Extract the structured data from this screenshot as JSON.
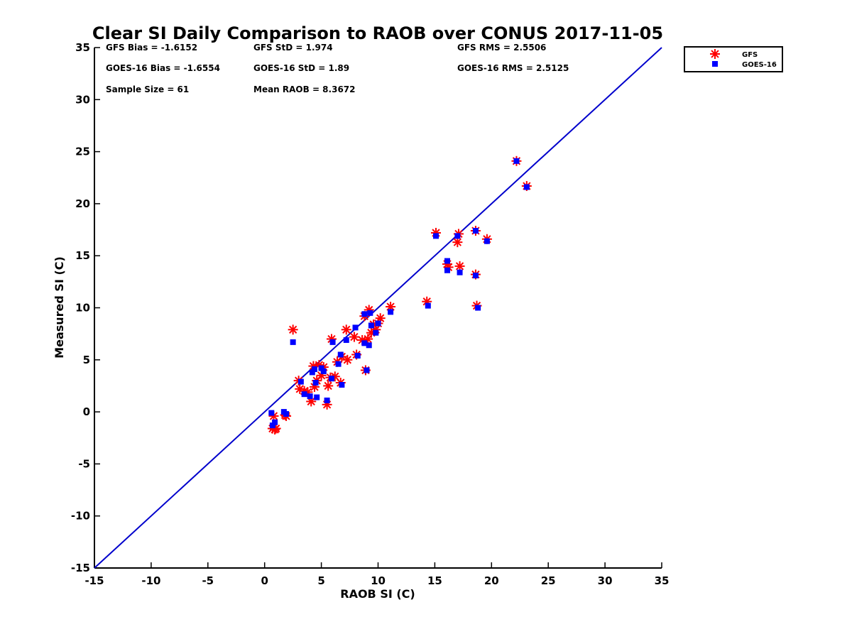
{
  "chart_data": {
    "type": "scatter",
    "title": "Clear SI Daily Comparison to RAOB over CONUS 2017-11-05",
    "xlabel": "RAOB SI (C)",
    "ylabel": "Measured SI (C)",
    "xlim": [
      -15,
      35
    ],
    "ylim": [
      -15,
      35
    ],
    "xticks": [
      "-15",
      "-10",
      "-5",
      "0",
      "5",
      "10",
      "15",
      "20",
      "25",
      "30",
      "35"
    ],
    "yticks": [
      "-15",
      "-10",
      "-5",
      "0",
      "5",
      "10",
      "15",
      "20",
      "25",
      "30",
      "35"
    ],
    "grid": false,
    "legend_position": "outside-top-right",
    "reference_line": {
      "from": [
        -15,
        -15
      ],
      "to": [
        35,
        35
      ],
      "color": "#0000cc"
    },
    "stats": [
      "GFS Bias = -1.6152",
      "GFS StD = 1.974",
      "GFS RMS = 2.5506",
      "GOES-16 Bias = -1.6554",
      "GOES-16 StD = 1.89",
      "GOES-16 RMS = 2.5125",
      "Sample Size = 61",
      "Mean RAOB = 8.3672"
    ],
    "series": [
      {
        "name": "GFS",
        "marker": "asterisk",
        "color": "#ff0000",
        "points": [
          [
            0.7,
            -1.6
          ],
          [
            0.9,
            -1.7
          ],
          [
            1.0,
            -1.6
          ],
          [
            0.8,
            -0.4
          ],
          [
            1.8,
            -0.3
          ],
          [
            1.9,
            -0.4
          ],
          [
            2.5,
            7.9
          ],
          [
            3.0,
            3.0
          ],
          [
            3.1,
            2.2
          ],
          [
            3.5,
            2.0
          ],
          [
            3.8,
            1.9
          ],
          [
            4.1,
            1.0
          ],
          [
            4.3,
            4.4
          ],
          [
            4.4,
            2.4
          ],
          [
            4.6,
            3.0
          ],
          [
            4.8,
            4.5
          ],
          [
            5.0,
            3.5
          ],
          [
            5.2,
            4.3
          ],
          [
            5.5,
            0.7
          ],
          [
            5.6,
            2.5
          ],
          [
            5.8,
            3.3
          ],
          [
            5.9,
            7.0
          ],
          [
            6.2,
            3.4
          ],
          [
            6.4,
            4.8
          ],
          [
            6.7,
            2.8
          ],
          [
            6.8,
            5.3
          ],
          [
            7.2,
            7.9
          ],
          [
            7.3,
            5.0
          ],
          [
            7.9,
            7.2
          ],
          [
            8.1,
            5.5
          ],
          [
            8.6,
            6.9
          ],
          [
            8.8,
            9.2
          ],
          [
            8.9,
            4.0
          ],
          [
            9.1,
            7.0
          ],
          [
            9.2,
            9.8
          ],
          [
            9.4,
            7.6
          ],
          [
            9.6,
            8.4
          ],
          [
            9.8,
            7.9
          ],
          [
            10.0,
            8.5
          ],
          [
            10.2,
            9.0
          ],
          [
            11.1,
            10.1
          ],
          [
            14.3,
            10.6
          ],
          [
            15.1,
            17.2
          ],
          [
            16.1,
            14.2
          ],
          [
            16.2,
            13.9
          ],
          [
            17.0,
            16.3
          ],
          [
            17.1,
            17.1
          ],
          [
            17.2,
            14.0
          ],
          [
            18.6,
            13.2
          ],
          [
            18.6,
            17.4
          ],
          [
            18.7,
            10.2
          ],
          [
            19.6,
            16.6
          ],
          [
            22.2,
            24.1
          ],
          [
            23.1,
            21.7
          ]
        ]
      },
      {
        "name": "GOES-16",
        "marker": "square",
        "color": "#0000ff",
        "points": [
          [
            0.6,
            -0.1
          ],
          [
            0.7,
            -1.3
          ],
          [
            0.9,
            -1.0
          ],
          [
            1.7,
            0.0
          ],
          [
            1.9,
            -0.2
          ],
          [
            2.5,
            6.7
          ],
          [
            3.2,
            2.9
          ],
          [
            3.5,
            1.7
          ],
          [
            4.0,
            1.5
          ],
          [
            4.2,
            3.8
          ],
          [
            4.4,
            4.1
          ],
          [
            4.5,
            2.8
          ],
          [
            4.6,
            1.4
          ],
          [
            5.0,
            4.2
          ],
          [
            5.2,
            3.9
          ],
          [
            5.5,
            1.1
          ],
          [
            5.9,
            3.2
          ],
          [
            6.0,
            6.7
          ],
          [
            6.5,
            4.6
          ],
          [
            6.8,
            2.6
          ],
          [
            6.7,
            5.5
          ],
          [
            7.2,
            6.9
          ],
          [
            8.0,
            8.1
          ],
          [
            8.2,
            5.4
          ],
          [
            8.8,
            6.6
          ],
          [
            8.8,
            9.4
          ],
          [
            9.0,
            4.0
          ],
          [
            9.2,
            6.4
          ],
          [
            9.3,
            9.5
          ],
          [
            9.4,
            8.3
          ],
          [
            9.8,
            7.6
          ],
          [
            10.0,
            8.5
          ],
          [
            11.1,
            9.6
          ],
          [
            14.4,
            10.2
          ],
          [
            15.1,
            16.9
          ],
          [
            16.1,
            14.5
          ],
          [
            16.1,
            13.6
          ],
          [
            17.0,
            16.9
          ],
          [
            17.2,
            13.4
          ],
          [
            18.6,
            13.1
          ],
          [
            18.6,
            17.4
          ],
          [
            18.8,
            10.0
          ],
          [
            19.6,
            16.4
          ],
          [
            22.2,
            24.1
          ],
          [
            23.1,
            21.6
          ]
        ]
      }
    ]
  }
}
